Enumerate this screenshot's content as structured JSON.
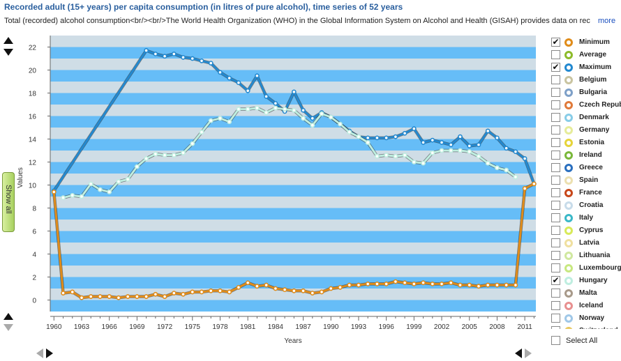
{
  "title": "Recorded adult (15+ years) per capita consumption (in litres of pure alcohol), time series of 52 years",
  "subtitle": "Total (recorded) alcohol consumption<br/><br/>The World Health Organization (WHO) in the Global Information System on Alcohol and Health (GISAH) provides data on rec...",
  "more_label": "more",
  "show_all_label": "Show all",
  "select_all_label": "Select All",
  "colors": {
    "band_light": "#cfdde6",
    "band_dark": "#66bdf7",
    "minimum": "#e08c1a",
    "maximum": "#2389d0",
    "hungary": "#bfeee0"
  },
  "chart_data": {
    "type": "line",
    "title": "Recorded adult (15+ years) per capita consumption (in litres of pure alcohol), time series of 52 years",
    "xlabel": "Years",
    "ylabel": "Values",
    "ylim": [
      -1,
      23
    ],
    "yticks": [
      0,
      2,
      4,
      6,
      8,
      10,
      12,
      14,
      16,
      18,
      20,
      22
    ],
    "xticks": [
      "1960",
      "1963",
      "1966",
      "1969",
      "1972",
      "1975",
      "1978",
      "1981",
      "1984",
      "1987",
      "1990",
      "1993",
      "1996",
      "1999",
      "2002",
      "2005",
      "2008",
      "2011"
    ],
    "series": [
      {
        "name": "Maximum",
        "color": "#2389d0",
        "x": [
          1960,
          1970,
          1971,
          1972,
          1973,
          1974,
          1975,
          1976,
          1977,
          1978,
          1979,
          1980,
          1981,
          1982,
          1983,
          1984,
          1985,
          1986,
          1987,
          1988,
          1989,
          1990,
          1991,
          1992,
          1993,
          1994,
          1995,
          1996,
          1997,
          1998,
          1999,
          2000,
          2001,
          2002,
          2003,
          2004,
          2005,
          2006,
          2007,
          2008,
          2009,
          2010,
          2011,
          2012
        ],
        "y": [
          9.5,
          21.7,
          21.4,
          21.2,
          21.4,
          21.1,
          21.0,
          20.8,
          20.6,
          19.8,
          19.3,
          18.9,
          18.2,
          19.5,
          17.7,
          17.1,
          16.4,
          18.1,
          16.5,
          15.8,
          16.3,
          15.9,
          15.3,
          14.7,
          14.2,
          14.1,
          14.1,
          14.1,
          14.2,
          14.5,
          14.9,
          13.7,
          13.9,
          13.7,
          13.5,
          14.2,
          13.4,
          13.5,
          14.7,
          14.1,
          13.2,
          12.9,
          12.3,
          10.1
        ]
      },
      {
        "name": "Hungary",
        "color": "#bfeee0",
        "x": [
          1961,
          1962,
          1963,
          1964,
          1965,
          1966,
          1967,
          1968,
          1969,
          1970,
          1971,
          1972,
          1973,
          1974,
          1975,
          1976,
          1977,
          1978,
          1979,
          1980,
          1981,
          1982,
          1983,
          1984,
          1985,
          1986,
          1987,
          1988,
          1989,
          1990,
          1991,
          1992,
          1993,
          1994,
          1995,
          1996,
          1997,
          1998,
          1999,
          2000,
          2001,
          2002,
          2003,
          2004,
          2005,
          2006,
          2007,
          2008,
          2009,
          2010
        ],
        "y": [
          8.9,
          9.1,
          9.0,
          10.1,
          9.6,
          9.4,
          10.3,
          10.5,
          11.6,
          12.3,
          12.7,
          12.6,
          12.6,
          12.8,
          13.6,
          14.6,
          15.6,
          15.8,
          15.5,
          16.6,
          16.6,
          16.7,
          16.3,
          16.7,
          16.6,
          16.5,
          15.8,
          15.2,
          16.2,
          15.9,
          15.3,
          14.6,
          14.2,
          13.7,
          12.5,
          12.6,
          12.5,
          12.6,
          12.0,
          11.9,
          12.8,
          13.0,
          13.0,
          13.0,
          12.9,
          12.5,
          11.9,
          11.5,
          11.3,
          10.7
        ]
      },
      {
        "name": "Minimum",
        "color": "#e08c1a",
        "x": [
          1960,
          1961,
          1962,
          1963,
          1964,
          1965,
          1966,
          1967,
          1968,
          1969,
          1970,
          1971,
          1972,
          1973,
          1974,
          1975,
          1976,
          1977,
          1978,
          1979,
          1980,
          1981,
          1982,
          1983,
          1984,
          1985,
          1986,
          1987,
          1988,
          1989,
          1990,
          1991,
          1992,
          1993,
          1994,
          1995,
          1996,
          1997,
          1998,
          1999,
          2000,
          2001,
          2002,
          2003,
          2004,
          2005,
          2006,
          2007,
          2008,
          2009,
          2010,
          2011,
          2012
        ],
        "y": [
          9.4,
          0.6,
          0.7,
          0.2,
          0.3,
          0.3,
          0.3,
          0.2,
          0.3,
          0.3,
          0.3,
          0.5,
          0.3,
          0.6,
          0.5,
          0.7,
          0.7,
          0.8,
          0.8,
          0.7,
          1.1,
          1.5,
          1.2,
          1.3,
          1.0,
          0.9,
          0.8,
          0.8,
          0.6,
          0.7,
          1.0,
          1.1,
          1.3,
          1.3,
          1.4,
          1.4,
          1.4,
          1.6,
          1.5,
          1.4,
          1.5,
          1.4,
          1.4,
          1.5,
          1.3,
          1.3,
          1.2,
          1.3,
          1.3,
          1.3,
          1.3,
          9.7,
          10.1
        ]
      }
    ]
  },
  "legend": [
    {
      "label": "Minimum",
      "checked": true,
      "color": "#e08c1a"
    },
    {
      "label": "Average",
      "checked": false,
      "color": "#8dbb2a"
    },
    {
      "label": "Maximum",
      "checked": true,
      "color": "#2389d0"
    },
    {
      "label": "Belgium",
      "checked": false,
      "color": "#c9c4a0"
    },
    {
      "label": "Bulgaria",
      "checked": false,
      "color": "#7ea0c8"
    },
    {
      "label": "Czech Republic",
      "checked": false,
      "color": "#e07a3a"
    },
    {
      "label": "Denmark",
      "checked": false,
      "color": "#88cde8"
    },
    {
      "label": "Germany",
      "checked": false,
      "color": "#e6ec9a"
    },
    {
      "label": "Estonia",
      "checked": false,
      "color": "#e6d43a"
    },
    {
      "label": "Ireland",
      "checked": false,
      "color": "#7ab83a"
    },
    {
      "label": "Greece",
      "checked": false,
      "color": "#2a6fbf"
    },
    {
      "label": "Spain",
      "checked": false,
      "color": "#ece0b0"
    },
    {
      "label": "France",
      "checked": false,
      "color": "#c8471a"
    },
    {
      "label": "Croatia",
      "checked": false,
      "color": "#c8dcea"
    },
    {
      "label": "Italy",
      "checked": false,
      "color": "#3ab8c8"
    },
    {
      "label": "Cyprus",
      "checked": false,
      "color": "#d8ea5a"
    },
    {
      "label": "Latvia",
      "checked": false,
      "color": "#f0e0a0"
    },
    {
      "label": "Lithuania",
      "checked": false,
      "color": "#d0e8a0"
    },
    {
      "label": "Luxembourg",
      "checked": false,
      "color": "#c8e880"
    },
    {
      "label": "Hungary",
      "checked": true,
      "color": "#bfeee0"
    },
    {
      "label": "Malta",
      "checked": false,
      "color": "#a89a8a"
    },
    {
      "label": "Iceland",
      "checked": false,
      "color": "#e89090"
    },
    {
      "label": "Norway",
      "checked": false,
      "color": "#a0c8e8"
    },
    {
      "label": "Switzerland",
      "checked": false,
      "color": "#e8c860"
    }
  ]
}
